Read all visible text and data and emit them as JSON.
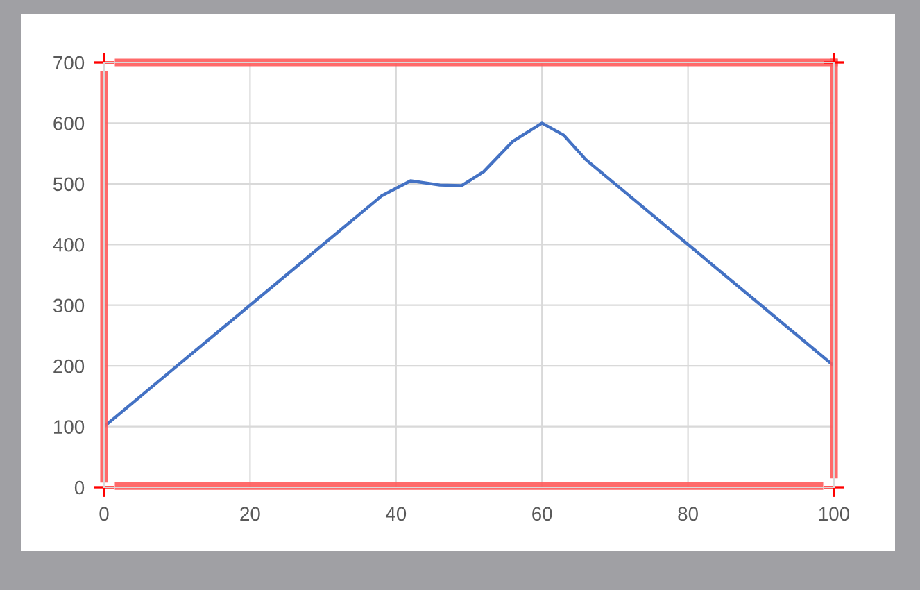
{
  "chart_data": {
    "type": "line",
    "x": [
      0,
      10,
      20,
      30,
      38,
      42,
      46,
      49,
      52,
      56,
      60,
      63,
      66,
      70,
      80,
      90,
      100
    ],
    "series": [
      {
        "color": "#4472c4",
        "values": [
          100,
          200,
          300,
          400,
          480,
          505,
          498,
          497,
          520,
          570,
          600,
          580,
          540,
          500,
          400,
          300,
          200
        ]
      }
    ],
    "xlim": [
      0,
      100
    ],
    "xticks": [
      0,
      20,
      40,
      60,
      80,
      100
    ],
    "ylim": [
      0,
      700
    ],
    "yticks": [
      0,
      100,
      200,
      300,
      400,
      500,
      600,
      700
    ],
    "grid": true,
    "marker": "none",
    "line_style": "solid",
    "legend": false
  }
}
